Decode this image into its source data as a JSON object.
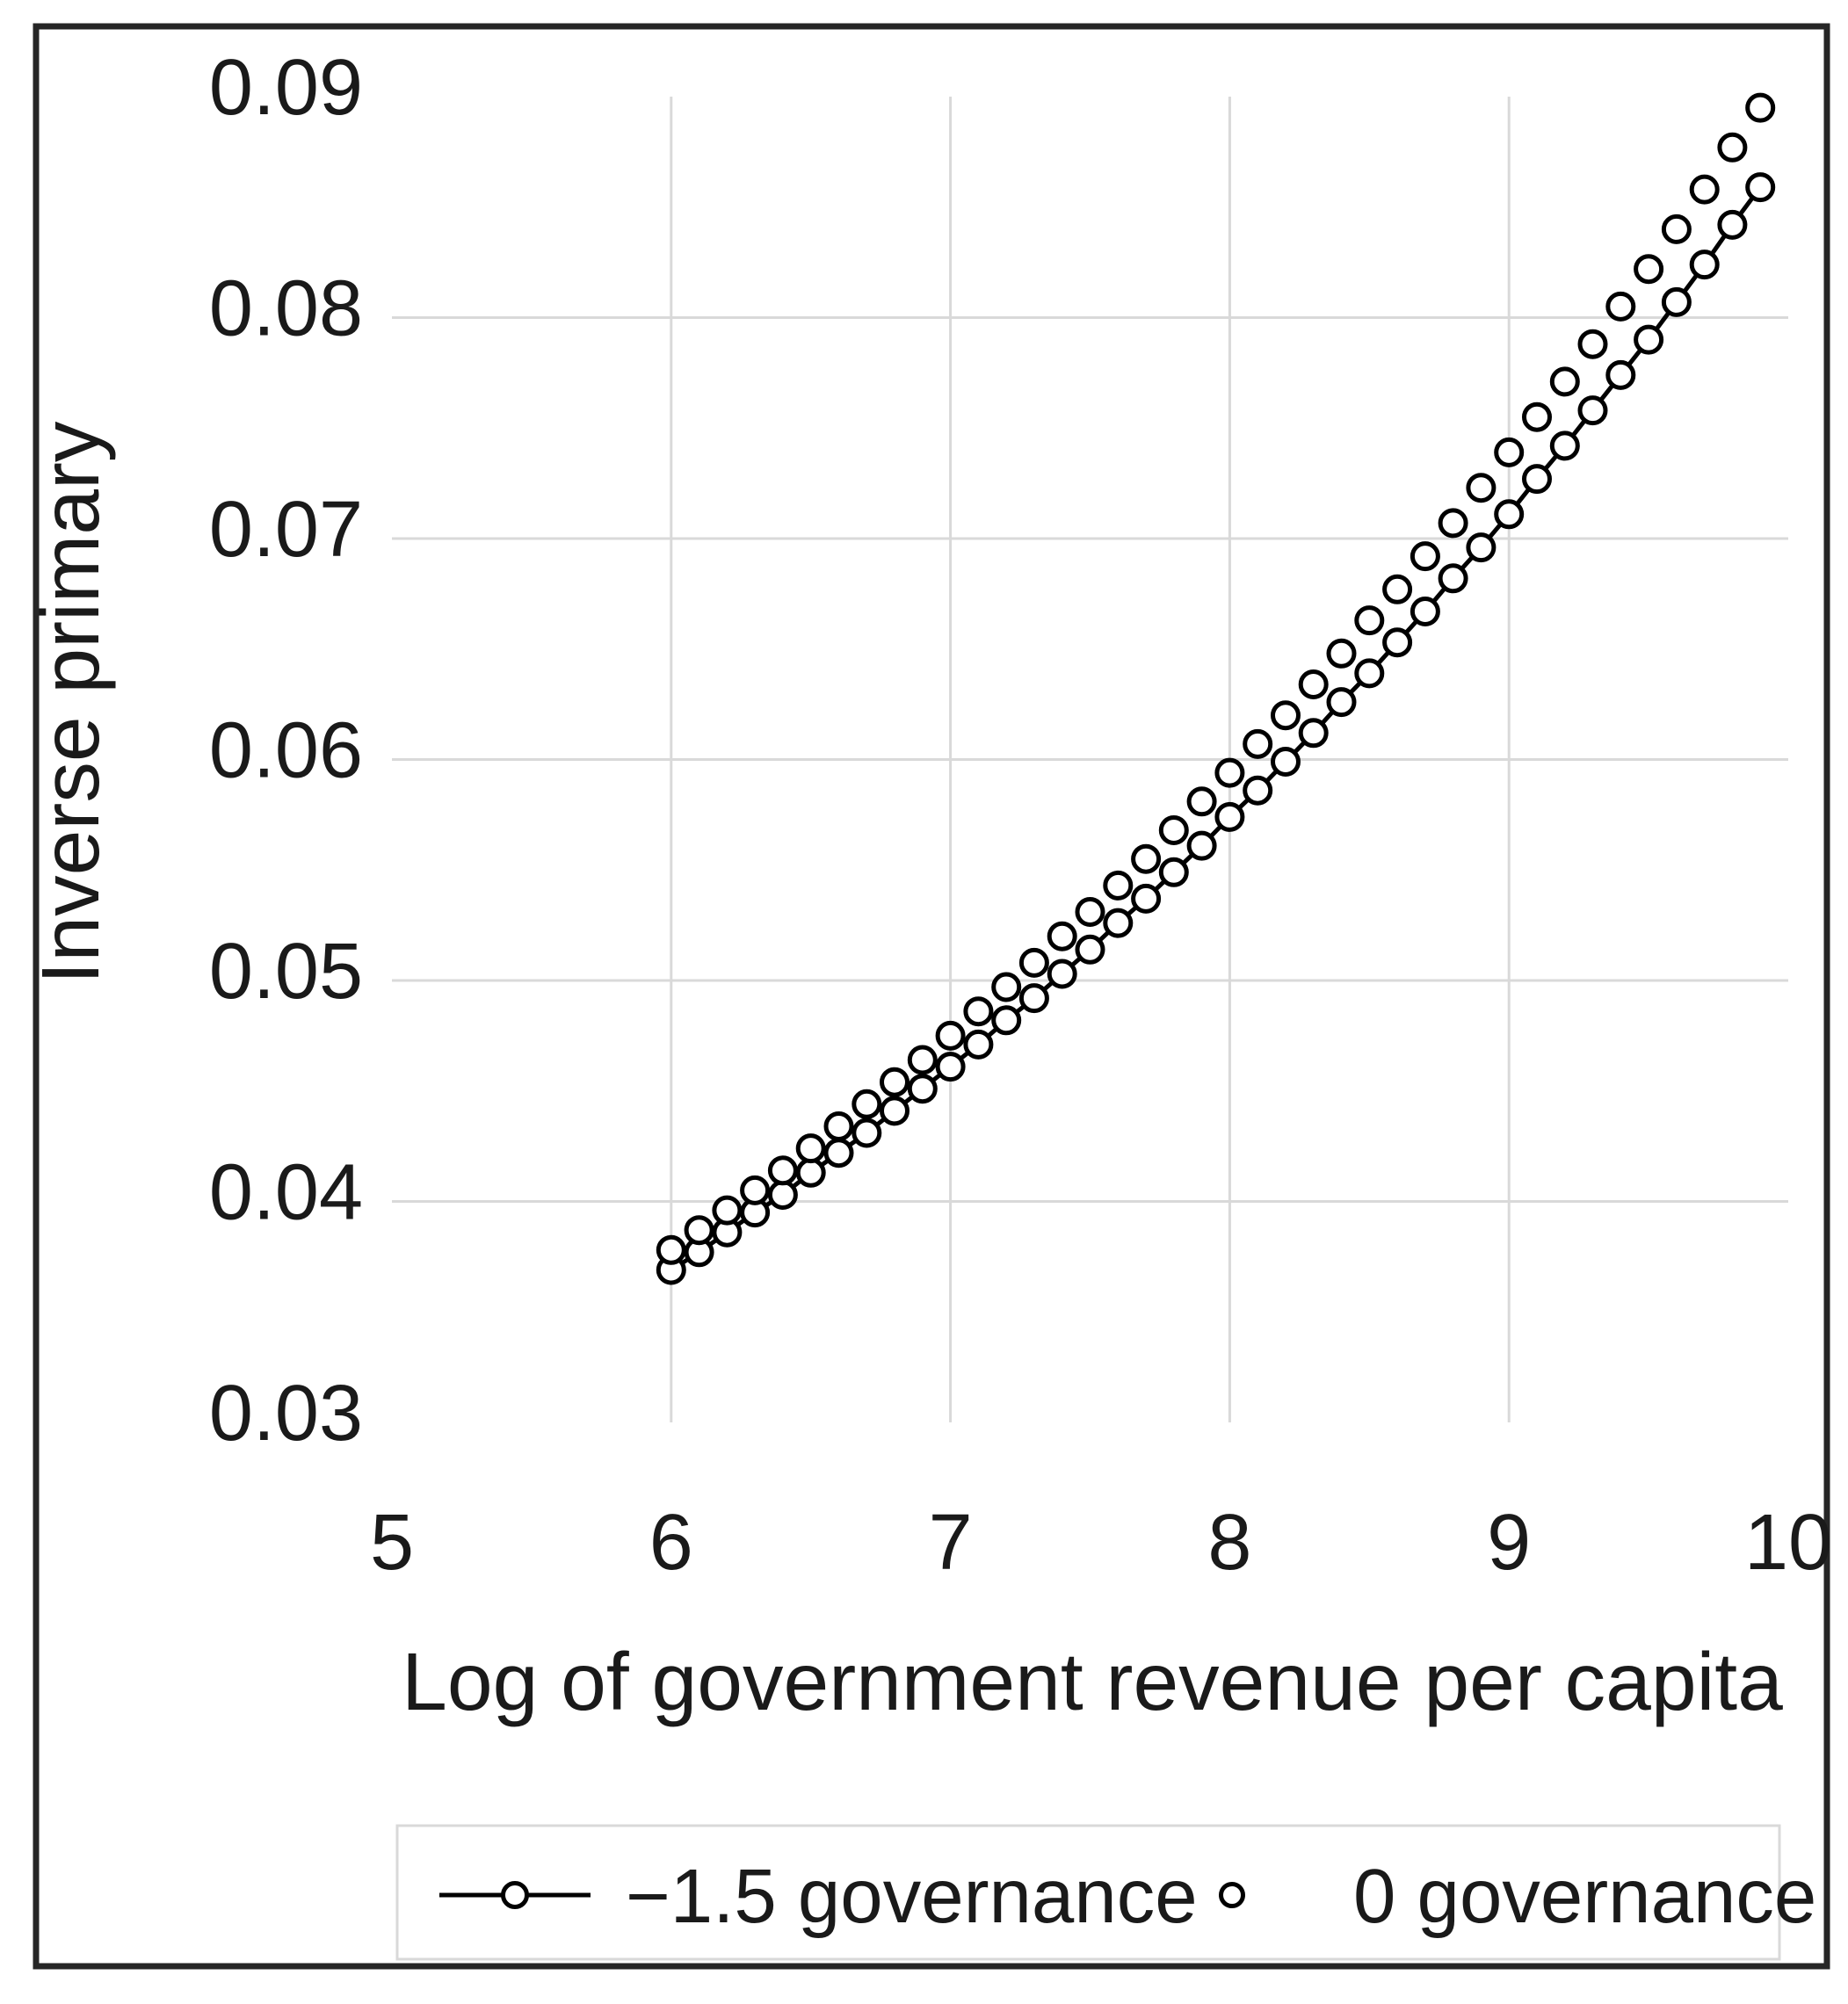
{
  "figure": {
    "background": "#ffffff",
    "border_color": "#262626",
    "gridline_color": "#d9d9d9",
    "series_color": "#000000"
  },
  "chart_data": {
    "type": "scatter",
    "title": "",
    "xlabel": "Log of government revenue per capita",
    "ylabel": "Inverse primary",
    "xlim": [
      5,
      10
    ],
    "ylim": [
      0.03,
      0.09
    ],
    "grid": {
      "x_gridlines": [
        6,
        7,
        8,
        9
      ],
      "y_gridlines": [
        0.04,
        0.05,
        0.06,
        0.07,
        0.08
      ],
      "color": "#d9d9d9"
    },
    "x_ticks": [
      5,
      6,
      7,
      8,
      9,
      10
    ],
    "x_tick_labels": [
      "5",
      "6",
      "7",
      "8",
      "9",
      "10"
    ],
    "y_ticks": [
      0.03,
      0.04,
      0.05,
      0.06,
      0.07,
      0.08,
      0.09
    ],
    "y_tick_labels": [
      "0.03",
      "0.04",
      "0.05",
      "0.06",
      "0.07",
      "0.08",
      "0.09"
    ],
    "legend": {
      "position": "bottom",
      "entries": [
        {
          "label": "−1.5 governance",
          "marker": "line-with-circle"
        },
        {
          "label": "0 governance",
          "marker": "circle"
        }
      ]
    },
    "x": [
      6.0,
      6.1,
      6.2,
      6.3,
      6.4,
      6.5,
      6.6,
      6.7,
      6.8,
      6.9,
      7.0,
      7.1,
      7.2,
      7.3,
      7.4,
      7.5,
      7.6,
      7.7,
      7.8,
      7.9,
      8.0,
      8.1,
      8.2,
      8.3,
      8.4,
      8.5,
      8.6,
      8.7,
      8.8,
      8.9,
      9.0,
      9.1,
      9.2,
      9.3,
      9.4,
      9.5,
      9.6,
      9.7,
      9.8,
      9.9
    ],
    "series": [
      {
        "name": "−1.5 governance",
        "type": "line+markers",
        "color": "#000000",
        "values": [
          0.0369,
          0.0377,
          0.0386,
          0.0395,
          0.0403,
          0.0413,
          0.0422,
          0.0431,
          0.0441,
          0.0451,
          0.0461,
          0.0471,
          0.0482,
          0.0492,
          0.0503,
          0.0514,
          0.0526,
          0.0537,
          0.0549,
          0.0561,
          0.0574,
          0.0586,
          0.0599,
          0.0612,
          0.0626,
          0.0639,
          0.0653,
          0.0667,
          0.0682,
          0.0696,
          0.0711,
          0.0727,
          0.0742,
          0.0758,
          0.0774,
          0.079,
          0.0807,
          0.0824,
          0.0842,
          0.0859
        ]
      },
      {
        "name": "0 governance",
        "type": "markers",
        "color": "#000000",
        "values": [
          0.0378,
          0.0387,
          0.0396,
          0.0405,
          0.0414,
          0.0424,
          0.0434,
          0.0444,
          0.0454,
          0.0464,
          0.0475,
          0.0486,
          0.0497,
          0.0508,
          0.052,
          0.0531,
          0.0543,
          0.0555,
          0.0568,
          0.0581,
          0.0594,
          0.0607,
          0.062,
          0.0634,
          0.0648,
          0.0663,
          0.0677,
          0.0692,
          0.0707,
          0.0723,
          0.0739,
          0.0755,
          0.0771,
          0.0788,
          0.0805,
          0.0822,
          0.084,
          0.0858,
          0.0877,
          0.0895
        ]
      }
    ]
  }
}
